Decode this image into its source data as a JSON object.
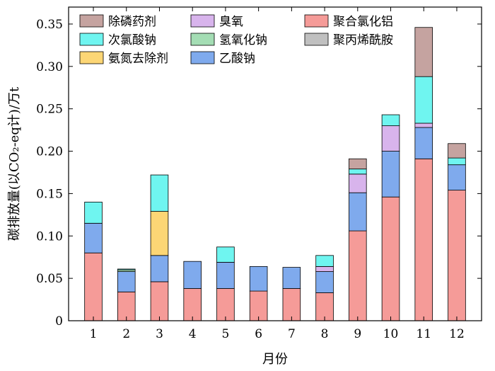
{
  "chart_data": {
    "type": "bar",
    "stacked": true,
    "xlabel": "月份",
    "ylabel": "碳排放量(以CO₂-eq计)/万t",
    "ylim": [
      0,
      0.37
    ],
    "yticks": [
      "0",
      "0.05",
      "0.10",
      "0.15",
      "0.20",
      "0.25",
      "0.30",
      "0.35"
    ],
    "categories": [
      "1",
      "2",
      "3",
      "4",
      "5",
      "6",
      "7",
      "8",
      "9",
      "10",
      "11",
      "12"
    ],
    "legend_position": "top-left",
    "series": [
      {
        "name": "聚合氯化铝",
        "color": "#f59b98",
        "values": [
          0.08,
          0.034,
          0.046,
          0.038,
          0.038,
          0.035,
          0.038,
          0.033,
          0.106,
          0.146,
          0.191,
          0.154
        ]
      },
      {
        "name": "聚丙烯酰胺",
        "color": "#c0c0c0",
        "values": [
          0.0,
          0.0,
          0.0,
          0.0,
          0.0,
          0.0,
          0.0,
          0.0,
          0.0,
          0.0,
          0.0,
          0.0
        ]
      },
      {
        "name": "乙酸钠",
        "color": "#7faaed",
        "values": [
          0.035,
          0.024,
          0.031,
          0.032,
          0.031,
          0.029,
          0.025,
          0.025,
          0.045,
          0.054,
          0.037,
          0.03
        ]
      },
      {
        "name": "氢氧化钠",
        "color": "#a4ddb4",
        "values": [
          0.0,
          0.002,
          0.0,
          0.0,
          0.0,
          0.0,
          0.0,
          0.0,
          0.0,
          0.0,
          0.0,
          0.0
        ]
      },
      {
        "name": "臭氧",
        "color": "#d8b4ec",
        "values": [
          0.0,
          0.0,
          0.0,
          0.0,
          0.0,
          0.0,
          0.0,
          0.006,
          0.022,
          0.03,
          0.005,
          0.0
        ]
      },
      {
        "name": "氨氮去除剂",
        "color": "#fcd675",
        "values": [
          0.0,
          0.0,
          0.052,
          0.0,
          0.0,
          0.0,
          0.0,
          0.0,
          0.0,
          0.0,
          0.0,
          0.0
        ]
      },
      {
        "name": "次氯酸钠",
        "color": "#6ff5f0",
        "values": [
          0.025,
          0.001,
          0.043,
          0.0,
          0.018,
          0.0,
          0.0,
          0.013,
          0.006,
          0.013,
          0.055,
          0.008
        ]
      },
      {
        "name": "除磷药剂",
        "color": "#c5a3a0",
        "values": [
          0.0,
          0.0,
          0.0,
          0.0,
          0.0,
          0.0,
          0.0,
          0.0,
          0.012,
          0.0,
          0.058,
          0.017
        ]
      }
    ],
    "legend": [
      {
        "name": "除磷药剂",
        "color": "#c5a3a0"
      },
      {
        "name": "次氯酸钠",
        "color": "#6ff5f0"
      },
      {
        "name": "氨氮去除剂",
        "color": "#fcd675"
      },
      {
        "name": "臭氧",
        "color": "#d8b4ec"
      },
      {
        "name": "氢氧化钠",
        "color": "#a4ddb4"
      },
      {
        "name": "乙酸钠",
        "color": "#7faaed"
      },
      {
        "name": "聚合氯化铝",
        "color": "#f59b98"
      },
      {
        "name": "聚丙烯酰胺",
        "color": "#c0c0c0"
      }
    ]
  }
}
